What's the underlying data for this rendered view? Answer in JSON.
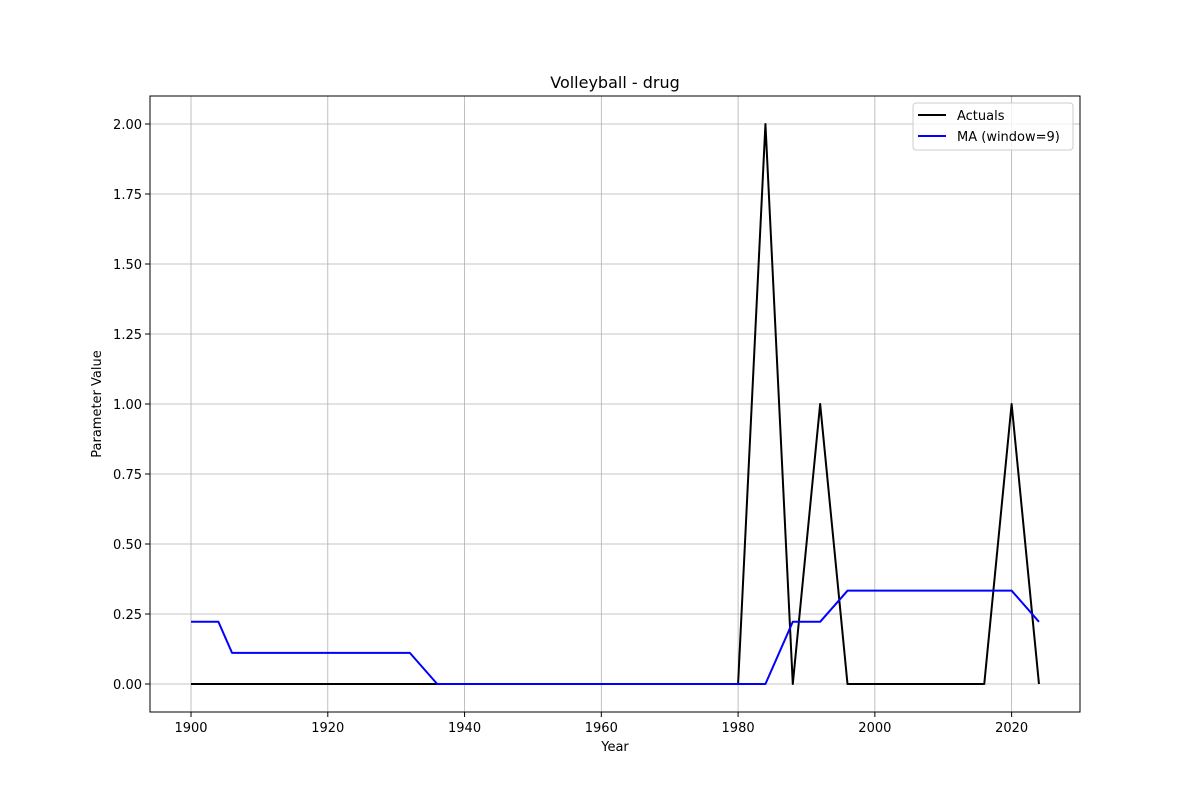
{
  "chart_data": {
    "type": "line",
    "title": "Volleyball - drug",
    "xlabel": "Year",
    "ylabel": "Parameter Value",
    "xlim": [
      1894,
      2030
    ],
    "ylim": [
      -0.1,
      2.1
    ],
    "xticks": [
      1900,
      1920,
      1940,
      1960,
      1980,
      2000,
      2020
    ],
    "yticks": [
      0.0,
      0.25,
      0.5,
      0.75,
      1.0,
      1.25,
      1.5,
      1.75,
      2.0
    ],
    "ytick_labels": [
      "0.00",
      "0.25",
      "0.50",
      "0.75",
      "1.00",
      "1.25",
      "1.50",
      "1.75",
      "2.00"
    ],
    "grid": true,
    "legend_position": "top-right",
    "series": [
      {
        "name": "Actuals",
        "color": "#000000",
        "x": [
          1900,
          1904,
          1906,
          1908,
          1912,
          1920,
          1924,
          1928,
          1932,
          1936,
          1948,
          1952,
          1956,
          1960,
          1964,
          1968,
          1972,
          1976,
          1980,
          1984,
          1988,
          1992,
          1996,
          2000,
          2004,
          2008,
          2012,
          2016,
          2020,
          2024
        ],
        "y": [
          0,
          0,
          0,
          0,
          0,
          0,
          0,
          0,
          0,
          0,
          0,
          0,
          0,
          0,
          0,
          0,
          0,
          0,
          0,
          2,
          0,
          1,
          0,
          0,
          0,
          0,
          0,
          0,
          1,
          0
        ]
      },
      {
        "name": "MA (window=9)",
        "color": "#0000ff",
        "x": [
          1900,
          1904,
          1906,
          1908,
          1912,
          1920,
          1924,
          1928,
          1932,
          1936,
          1948,
          1952,
          1956,
          1960,
          1964,
          1968,
          1972,
          1976,
          1980,
          1984,
          1988,
          1992,
          1996,
          2000,
          2004,
          2008,
          2012,
          2016,
          2020,
          2024
        ],
        "y": [
          0.2222,
          0.2222,
          0.1111,
          0.1111,
          0.1111,
          0.1111,
          0.1111,
          0.1111,
          0.1111,
          0,
          0,
          0,
          0,
          0,
          0,
          0,
          0,
          0,
          0,
          0,
          0.2222,
          0.2222,
          0.3333,
          0.3333,
          0.3333,
          0.3333,
          0.3333,
          0.3333,
          0.3333,
          0.2222
        ]
      }
    ]
  }
}
